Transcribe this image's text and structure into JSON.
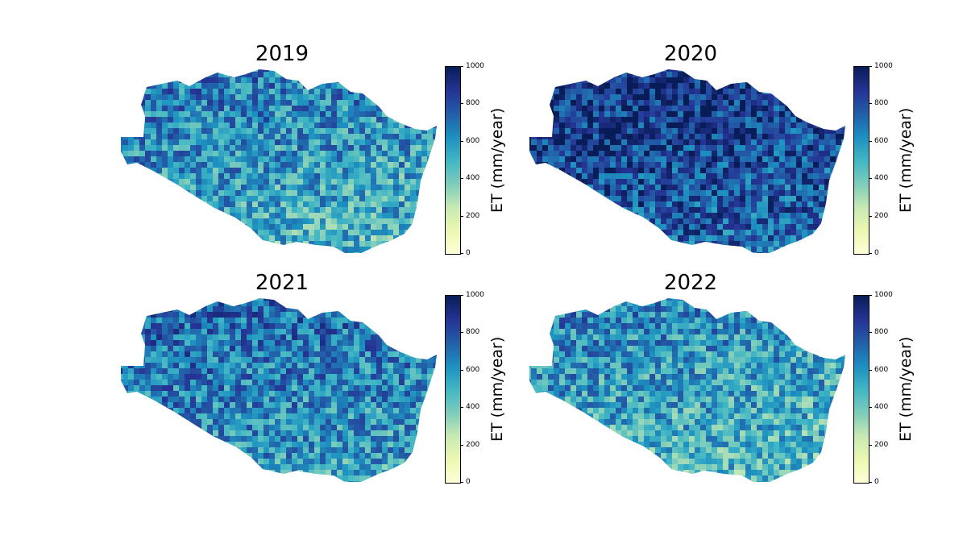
{
  "figure": {
    "panels": [
      {
        "title": "2019",
        "colorbar_label": "ET (mm/year)",
        "ticks": [
          "0",
          "200",
          "400",
          "600",
          "800",
          "1000"
        ],
        "mean_level": 0.58
      },
      {
        "title": "2020",
        "colorbar_label": "ET (mm/year)",
        "ticks": [
          "0",
          "200",
          "400",
          "600",
          "800",
          "1000"
        ],
        "mean_level": 0.82
      },
      {
        "title": "2021",
        "colorbar_label": "ET (mm/year)",
        "ticks": [
          "0",
          "200",
          "400",
          "600",
          "800",
          "1000"
        ],
        "mean_level": 0.64
      },
      {
        "title": "2022",
        "colorbar_label": "ET (mm/year)",
        "ticks": [
          "0",
          "200",
          "400",
          "600",
          "800",
          "1000"
        ],
        "mean_level": 0.55
      }
    ],
    "colormap": {
      "name": "YlGnBu",
      "stops": [
        "#ffffd9",
        "#edf8b1",
        "#c7e9b4",
        "#7fcdbb",
        "#41b6c4",
        "#1d91c0",
        "#225ea8",
        "#253494",
        "#081d58"
      ],
      "range": [
        0,
        1000
      ],
      "units": "mm/year"
    }
  }
}
